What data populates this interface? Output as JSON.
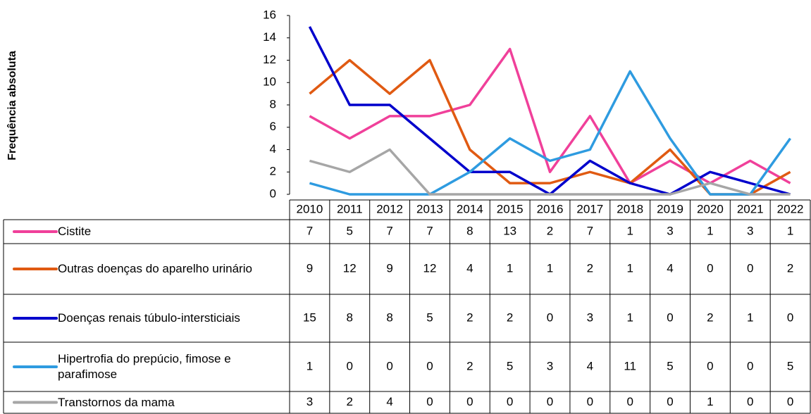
{
  "chart_data": {
    "type": "line",
    "y_label": "Frequência absoluta",
    "categories": [
      "2010",
      "2011",
      "2012",
      "2013",
      "2014",
      "2015",
      "2016",
      "2017",
      "2018",
      "2019",
      "2020",
      "2021",
      "2022"
    ],
    "ylim": [
      0,
      16
    ],
    "yticks": [
      0,
      2,
      4,
      6,
      8,
      10,
      12,
      14,
      16
    ],
    "series": [
      {
        "name": "Cistite",
        "color": "#f0409a",
        "values": [
          7,
          5,
          7,
          7,
          8,
          13,
          2,
          7,
          1,
          3,
          1,
          3,
          1
        ]
      },
      {
        "name": "Outras doenças do aparelho urinário",
        "color": "#e05a12",
        "values": [
          9,
          12,
          9,
          12,
          4,
          1,
          1,
          2,
          1,
          4,
          0,
          0,
          2
        ]
      },
      {
        "name": "Doenças renais túbulo-intersticiais",
        "color": "#0000cc",
        "values": [
          15,
          8,
          8,
          5,
          2,
          2,
          0,
          3,
          1,
          0,
          2,
          1,
          0
        ]
      },
      {
        "name": "Hipertrofia do prepúcio, fimose e parafimose",
        "color": "#2e9be0",
        "values": [
          1,
          0,
          0,
          0,
          2,
          5,
          3,
          4,
          11,
          5,
          0,
          0,
          5
        ]
      },
      {
        "name": "Transtornos da mama",
        "color": "#a6a6a6",
        "values": [
          3,
          2,
          4,
          0,
          0,
          0,
          0,
          0,
          0,
          0,
          1,
          0,
          0
        ]
      }
    ]
  }
}
